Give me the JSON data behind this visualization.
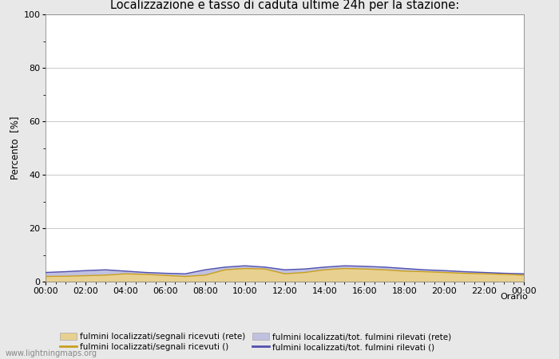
{
  "title": "Localizzazione e tasso di caduta ultime 24h per la stazione:",
  "ylabel": "Percento  [%]",
  "xlabel": "Orario",
  "ylim": [
    0,
    100
  ],
  "yticks": [
    0,
    20,
    40,
    60,
    80,
    100
  ],
  "yticks_minor": [
    10,
    30,
    50,
    70,
    90
  ],
  "xtick_labels": [
    "00:00",
    "02:00",
    "04:00",
    "06:00",
    "08:00",
    "10:00",
    "12:00",
    "14:00",
    "16:00",
    "18:00",
    "20:00",
    "22:00",
    "00:00"
  ],
  "bg_color": "#e8e8e8",
  "plot_bg_color": "#ffffff",
  "fill_color_orange": "#e8d090",
  "fill_color_blue": "#c0c0e0",
  "line_color_orange": "#c8a020",
  "line_color_blue": "#5050b0",
  "watermark": "www.lightningmaps.org",
  "legend": [
    {
      "label": "fulmini localizzati/segnali ricevuti (rete)",
      "type": "fill",
      "color": "#e8d090"
    },
    {
      "label": "fulmini localizzati/segnali ricevuti ()",
      "type": "line",
      "color": "#c8a020"
    },
    {
      "label": "fulmini localizzati/tot. fulmini rilevati (rete)",
      "type": "fill",
      "color": "#c0c0e0"
    },
    {
      "label": "fulmini localizzati/tot. fulmini rilevati ()",
      "type": "line",
      "color": "#5050b0"
    }
  ],
  "data_orange_fill": [
    2.0,
    2.1,
    2.3,
    2.5,
    3.0,
    2.8,
    2.4,
    2.0,
    2.5,
    4.5,
    5.0,
    4.8,
    3.0,
    3.5,
    4.5,
    5.0,
    4.8,
    4.5,
    4.0,
    3.8,
    3.5,
    3.2,
    3.0,
    2.8,
    2.5
  ],
  "data_blue_fill": [
    3.5,
    3.8,
    4.2,
    4.5,
    4.0,
    3.5,
    3.2,
    3.0,
    4.5,
    5.5,
    6.0,
    5.5,
    4.5,
    4.8,
    5.5,
    6.0,
    5.8,
    5.5,
    5.0,
    4.5,
    4.2,
    3.8,
    3.5,
    3.2,
    3.0
  ]
}
